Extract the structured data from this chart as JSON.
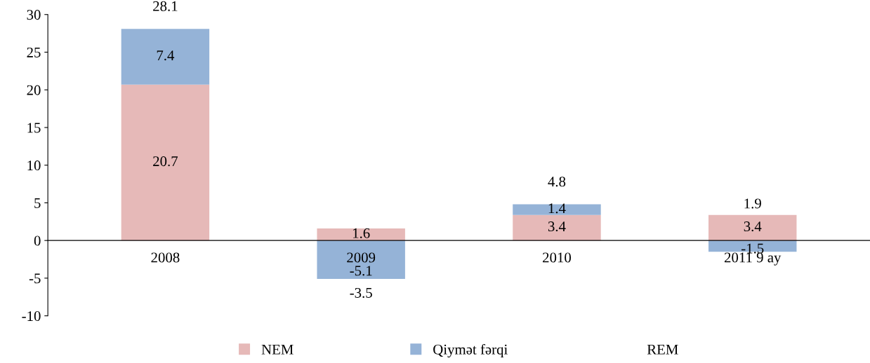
{
  "chart_data": {
    "type": "bar",
    "stacked": true,
    "categories": [
      "2008",
      "2009",
      "2010",
      "2011 9 ay"
    ],
    "series": [
      {
        "name": "NEM",
        "color": "#e6b9b8",
        "values": [
          20.7,
          1.6,
          3.4,
          3.4
        ]
      },
      {
        "name": "Qiymət fərqi",
        "color": "#95b3d7",
        "values": [
          7.4,
          -5.1,
          1.4,
          -1.5
        ]
      }
    ],
    "totals": [
      "28.1",
      "-3.5",
      "4.8",
      "1.9"
    ],
    "annotations": [
      "REM"
    ],
    "ylim": [
      -10,
      30
    ],
    "yticks": [
      -10,
      -5,
      0,
      5,
      10,
      15,
      20,
      25,
      30
    ],
    "data_labels": true,
    "grid": false,
    "legend": "bottom"
  }
}
